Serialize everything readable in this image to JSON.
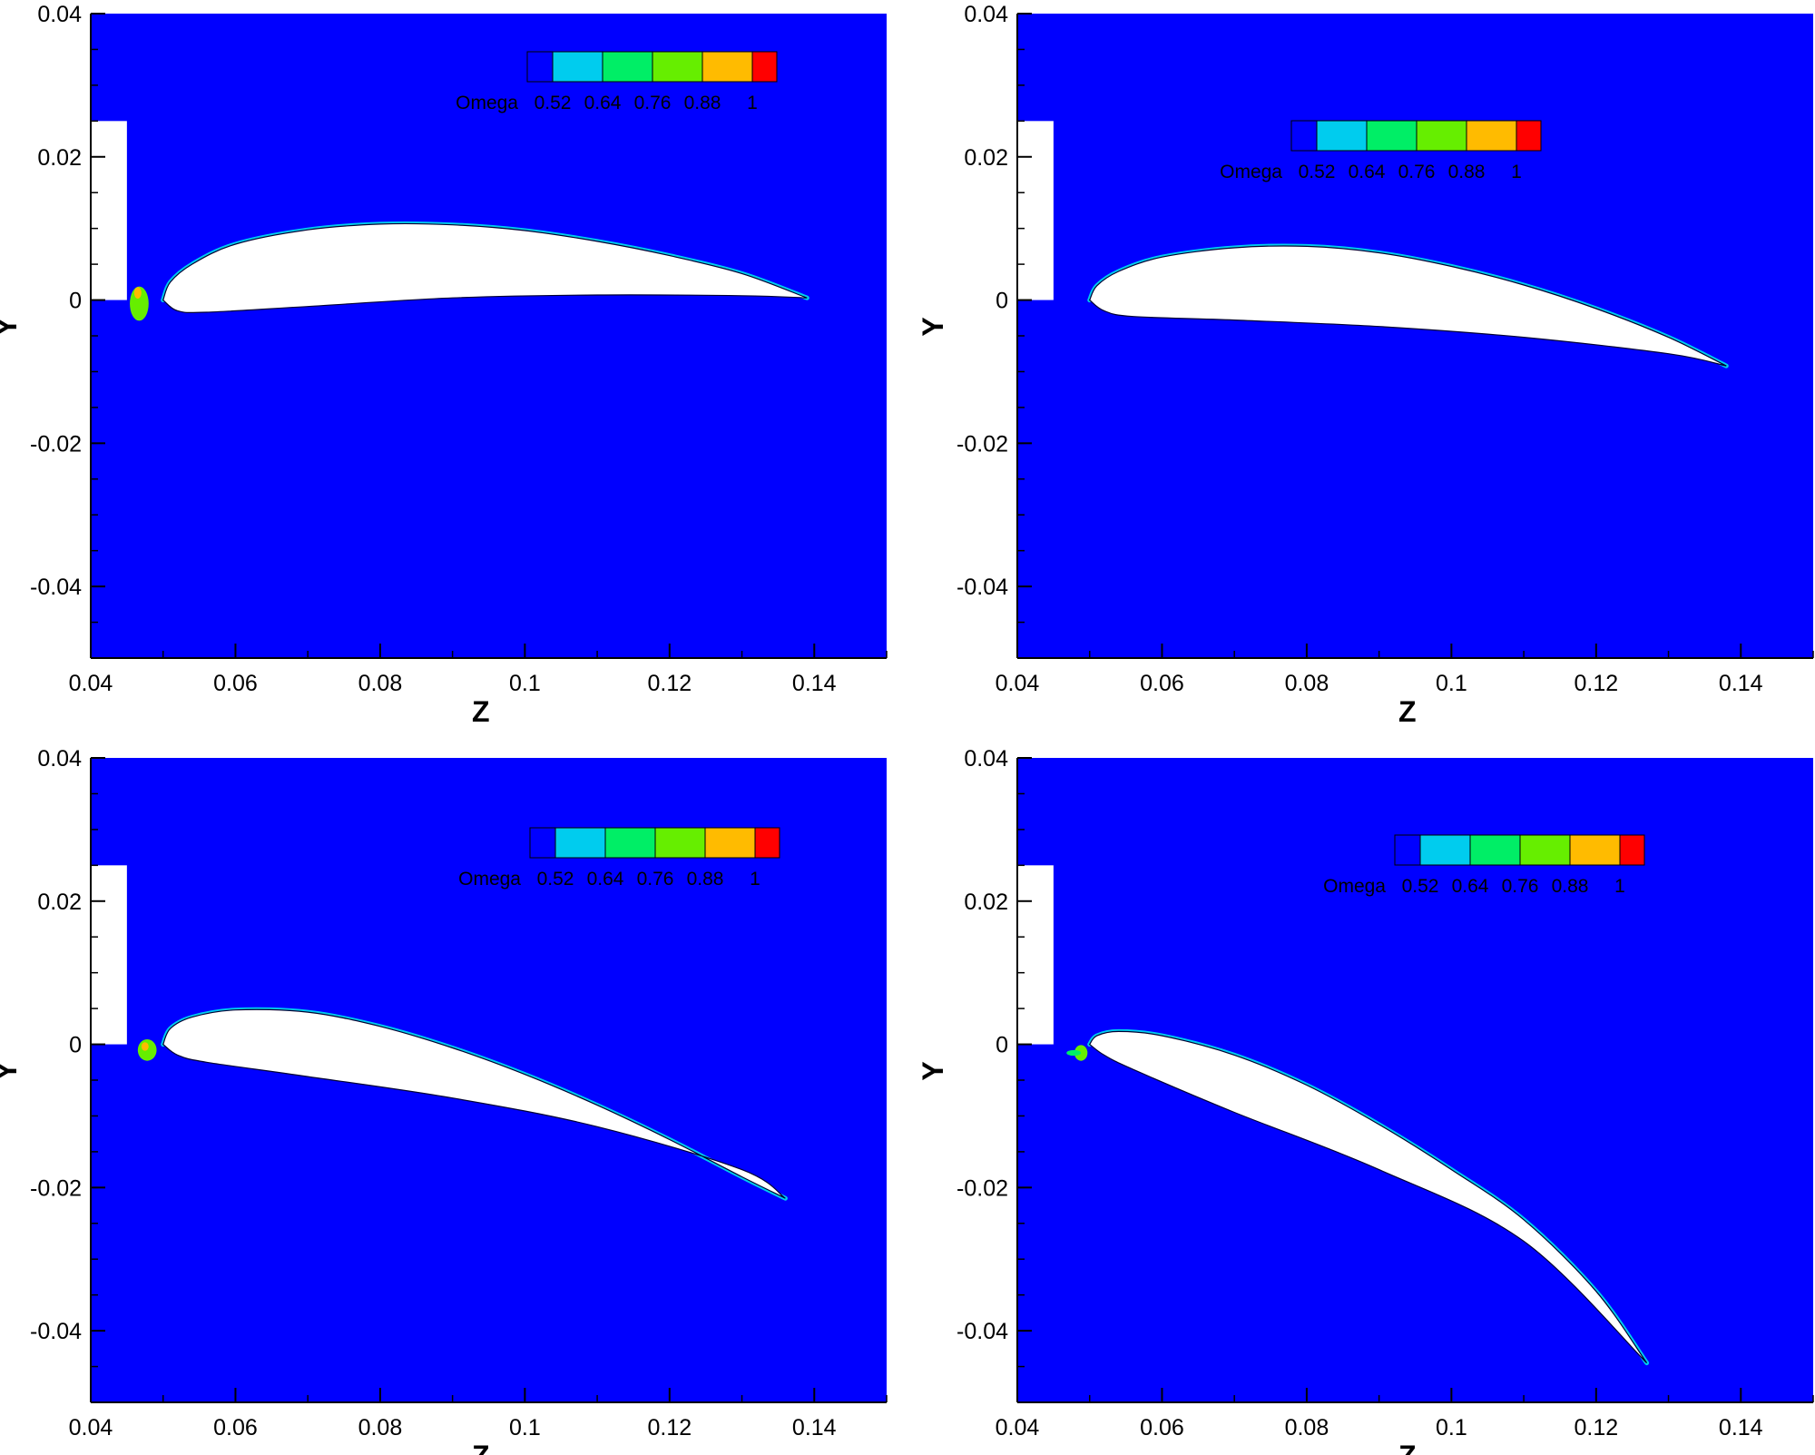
{
  "figure_colors": {
    "background": "#0000ff",
    "body_fill": "#ffffff",
    "axis": "#000000"
  },
  "chart_data": [
    {
      "type": "heatmap",
      "panel": "top-left",
      "xlabel": "Z",
      "ylabel": "Y",
      "xlim": [
        0.04,
        0.15
      ],
      "ylim": [
        -0.05,
        0.04
      ],
      "x_ticks": [
        0.04,
        0.06,
        0.08,
        0.1,
        0.12,
        0.14
      ],
      "x_tick_labels": [
        "0.04",
        "0.06",
        "0.08",
        "0.1",
        "0.12",
        "0.14"
      ],
      "y_ticks": [
        0.04,
        0.02,
        0,
        -0.02,
        -0.04
      ],
      "y_tick_labels": [
        "0.04",
        "0.02",
        "0",
        "-0.02",
        "-0.04"
      ],
      "legend": {
        "title": "Omega",
        "placement": "top-right",
        "levels": [
          "0.52",
          "0.64",
          "0.76",
          "0.88",
          "1"
        ],
        "colors": [
          "#0000ff",
          "#00ccee",
          "#00ee66",
          "#66ee00",
          "#ffbb00",
          "#ff0000"
        ]
      },
      "plate": {
        "z": [
          0.04,
          0.045
        ],
        "y": [
          0,
          0.025
        ]
      },
      "airfoil": {
        "upper": [
          [
            0.05,
            0
          ],
          [
            0.051,
            0.0025
          ],
          [
            0.054,
            0.005
          ],
          [
            0.06,
            0.0078
          ],
          [
            0.07,
            0.0098
          ],
          [
            0.08,
            0.0106
          ],
          [
            0.09,
            0.0105
          ],
          [
            0.1,
            0.0097
          ],
          [
            0.11,
            0.0082
          ],
          [
            0.12,
            0.0062
          ],
          [
            0.13,
            0.0037
          ],
          [
            0.139,
            0.0003
          ]
        ],
        "lower": [
          [
            0.05,
            0
          ],
          [
            0.052,
            -0.0015
          ],
          [
            0.056,
            -0.0017
          ],
          [
            0.07,
            -0.0009
          ],
          [
            0.09,
            0.0003
          ],
          [
            0.11,
            0.0007
          ],
          [
            0.13,
            0.0006
          ],
          [
            0.139,
            0.0003
          ]
        ]
      },
      "highlights": [
        {
          "z": 0.0467,
          "y": -0.0005,
          "rz": 0.0013,
          "ry": 0.0024,
          "level": "0.76"
        },
        {
          "z": 0.0465,
          "y": 0.001,
          "rz": 0.0005,
          "ry": 0.0008,
          "level": "0.88"
        }
      ]
    },
    {
      "type": "heatmap",
      "panel": "top-right",
      "xlabel": "Z",
      "ylabel": "Y",
      "xlim": [
        0.04,
        0.15
      ],
      "ylim": [
        -0.05,
        0.04
      ],
      "x_ticks": [
        0.04,
        0.06,
        0.08,
        0.1,
        0.12,
        0.14
      ],
      "x_tick_labels": [
        "0.04",
        "0.06",
        "0.08",
        "0.1",
        "0.12",
        "0.14"
      ],
      "y_ticks": [
        0.04,
        0.02,
        0,
        -0.02,
        -0.04
      ],
      "y_tick_labels": [
        "0.04",
        "0.02",
        "0",
        "-0.02",
        "-0.04"
      ],
      "legend": {
        "title": "Omega",
        "placement": "top-right",
        "levels": [
          "0.52",
          "0.64",
          "0.76",
          "0.88",
          "1"
        ],
        "colors": [
          "#0000ff",
          "#00ccee",
          "#00ee66",
          "#66ee00",
          "#ffbb00",
          "#ff0000"
        ]
      },
      "plate": {
        "z": [
          0.04,
          0.045
        ],
        "y": [
          0,
          0.025
        ]
      },
      "airfoil": {
        "upper": [
          [
            0.05,
            0
          ],
          [
            0.051,
            0.002
          ],
          [
            0.054,
            0.004
          ],
          [
            0.06,
            0.006
          ],
          [
            0.07,
            0.0073
          ],
          [
            0.08,
            0.0075
          ],
          [
            0.09,
            0.0066
          ],
          [
            0.1,
            0.0047
          ],
          [
            0.11,
            0.0021
          ],
          [
            0.12,
            -0.0012
          ],
          [
            0.13,
            -0.0052
          ],
          [
            0.138,
            -0.0092
          ]
        ],
        "lower": [
          [
            0.05,
            0
          ],
          [
            0.052,
            -0.0015
          ],
          [
            0.056,
            -0.0023
          ],
          [
            0.07,
            -0.0028
          ],
          [
            0.09,
            -0.0037
          ],
          [
            0.11,
            -0.0052
          ],
          [
            0.13,
            -0.0075
          ],
          [
            0.138,
            -0.0092
          ]
        ]
      },
      "highlights": []
    },
    {
      "type": "heatmap",
      "panel": "bottom-left",
      "xlabel": "Z",
      "ylabel": "Y",
      "xlim": [
        0.04,
        0.15
      ],
      "ylim": [
        -0.05,
        0.04
      ],
      "x_ticks": [
        0.04,
        0.06,
        0.08,
        0.1,
        0.12,
        0.14
      ],
      "x_tick_labels": [
        "0.04",
        "0.06",
        "0.08",
        "0.1",
        "0.12",
        "0.14"
      ],
      "y_ticks": [
        0.04,
        0.02,
        0,
        -0.02,
        -0.04
      ],
      "y_tick_labels": [
        "0.04",
        "0.02",
        "0",
        "-0.02",
        "-0.04"
      ],
      "legend": {
        "title": "Omega",
        "placement": "top-right",
        "levels": [
          "0.52",
          "0.64",
          "0.76",
          "0.88",
          "1"
        ],
        "colors": [
          "#0000ff",
          "#00ccee",
          "#00ee66",
          "#66ee00",
          "#ffbb00",
          "#ff0000"
        ]
      },
      "plate": {
        "z": [
          0.04,
          0.045
        ],
        "y": [
          0,
          0.025
        ]
      },
      "airfoil": {
        "upper": [
          [
            0.05,
            0
          ],
          [
            0.051,
            0.0022
          ],
          [
            0.054,
            0.0038
          ],
          [
            0.06,
            0.0048
          ],
          [
            0.07,
            0.0045
          ],
          [
            0.08,
            0.0025
          ],
          [
            0.09,
            -0.0005
          ],
          [
            0.1,
            -0.0042
          ],
          [
            0.11,
            -0.0085
          ],
          [
            0.12,
            -0.0133
          ],
          [
            0.13,
            -0.0185
          ],
          [
            0.136,
            -0.0215
          ]
        ],
        "lower": [
          [
            0.05,
            0
          ],
          [
            0.052,
            -0.0015
          ],
          [
            0.056,
            -0.0025
          ],
          [
            0.07,
            -0.0045
          ],
          [
            0.09,
            -0.0075
          ],
          [
            0.11,
            -0.0115
          ],
          [
            0.13,
            -0.0175
          ],
          [
            0.136,
            -0.0215
          ]
        ]
      },
      "highlights": [
        {
          "z": 0.0478,
          "y": -0.0008,
          "rz": 0.0013,
          "ry": 0.0015,
          "level": "0.76"
        },
        {
          "z": 0.0475,
          "y": -0.0003,
          "rz": 0.0005,
          "ry": 0.0006,
          "level": "0.88"
        }
      ]
    },
    {
      "type": "heatmap",
      "panel": "bottom-right",
      "xlabel": "Z",
      "ylabel": "Y",
      "xlim": [
        0.04,
        0.15
      ],
      "ylim": [
        -0.05,
        0.04
      ],
      "x_ticks": [
        0.04,
        0.06,
        0.08,
        0.1,
        0.12,
        0.14
      ],
      "x_tick_labels": [
        "0.04",
        "0.06",
        "0.08",
        "0.1",
        "0.12",
        "0.14"
      ],
      "y_ticks": [
        0.04,
        0.02,
        0,
        -0.02,
        -0.04
      ],
      "y_tick_labels": [
        "0.04",
        "0.02",
        "0",
        "-0.02",
        "-0.04"
      ],
      "legend": {
        "title": "Omega",
        "placement": "top-right",
        "levels": [
          "0.52",
          "0.64",
          "0.76",
          "0.88",
          "1"
        ],
        "colors": [
          "#0000ff",
          "#00ccee",
          "#00ee66",
          "#66ee00",
          "#ffbb00",
          "#ff0000"
        ]
      },
      "plate": {
        "z": [
          0.04,
          0.045
        ],
        "y": [
          0,
          0.025
        ]
      },
      "airfoil": {
        "upper": [
          [
            0.05,
            0
          ],
          [
            0.051,
            0.0012
          ],
          [
            0.054,
            0.0018
          ],
          [
            0.06,
            0.0012
          ],
          [
            0.07,
            -0.0015
          ],
          [
            0.08,
            -0.0057
          ],
          [
            0.09,
            -0.0112
          ],
          [
            0.1,
            -0.0175
          ],
          [
            0.11,
            -0.0245
          ],
          [
            0.12,
            -0.0345
          ],
          [
            0.127,
            -0.0445
          ]
        ],
        "lower": [
          [
            0.05,
            0
          ],
          [
            0.052,
            -0.0015
          ],
          [
            0.056,
            -0.0035
          ],
          [
            0.07,
            -0.0095
          ],
          [
            0.09,
            -0.0175
          ],
          [
            0.11,
            -0.0275
          ],
          [
            0.127,
            -0.0445
          ]
        ]
      },
      "highlights": [
        {
          "z": 0.0488,
          "y": -0.0012,
          "rz": 0.0009,
          "ry": 0.0011,
          "level": "0.76"
        },
        {
          "z": 0.0478,
          "y": -0.0012,
          "rz": 0.001,
          "ry": 0.0004,
          "level": "0.64"
        }
      ]
    }
  ]
}
